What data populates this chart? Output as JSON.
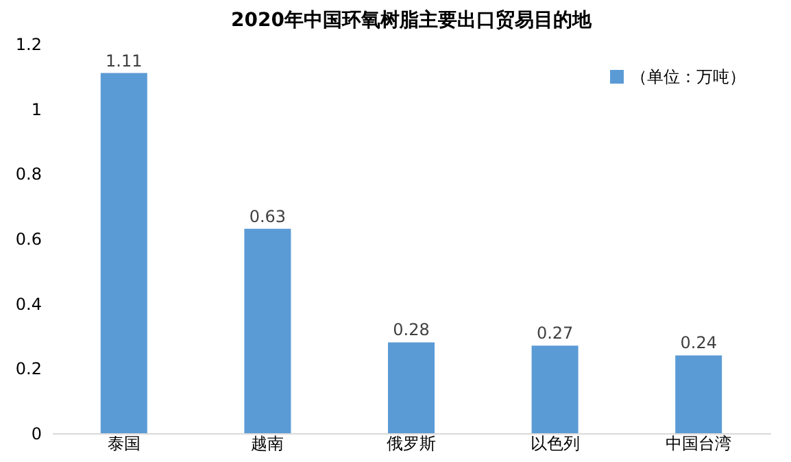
{
  "chart_data": {
    "type": "bar",
    "title": "2020年中国环氧树脂主要出口贸易目的地",
    "categories": [
      "泰国",
      "越南",
      "俄罗斯",
      "以色列",
      "中国台湾"
    ],
    "series": [
      {
        "name": "（单位：万吨）",
        "color": "#5b9bd5",
        "values": [
          1.11,
          0.63,
          0.28,
          0.27,
          0.24
        ]
      }
    ],
    "ylim": [
      0,
      1.2
    ],
    "yticks": [
      0,
      0.2,
      0.4,
      0.6,
      0.8,
      1,
      1.2
    ],
    "data_labels": true,
    "legend": "top right",
    "grid": false
  }
}
